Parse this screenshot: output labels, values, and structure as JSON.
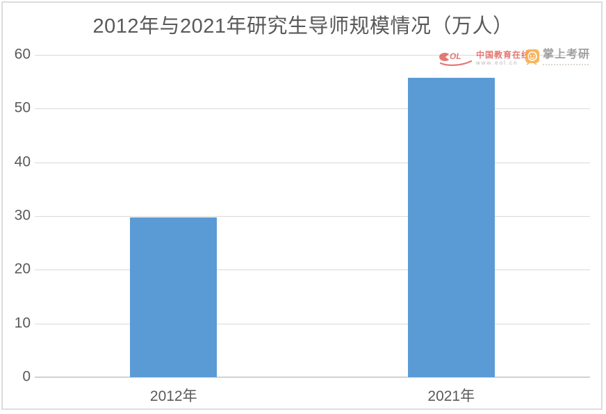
{
  "window": {
    "background": "#ffffff",
    "border_color": "#dcdcdc"
  },
  "chart_data": {
    "type": "bar",
    "title": "2012年与2021年研究生导师规模情况（万人）",
    "categories": [
      "2012年",
      "2021年"
    ],
    "values": [
      29.8,
      55.7
    ],
    "xlabel": "",
    "ylabel": "",
    "ylim": [
      0,
      60
    ],
    "yticks": [
      0,
      10,
      20,
      30,
      40,
      50,
      60
    ],
    "grid": "horizontal-only",
    "legend": "none",
    "bar_color": "#5B9BD5",
    "gridline_color": "#d9d9d9",
    "axis_line_color": "#d2d2d2",
    "text_color": "#595959"
  },
  "watermarks": {
    "eol": {
      "logo_text": "eol",
      "name": "中国教育在线",
      "url": "www.eol.cn",
      "color": "#e0625b"
    },
    "kaoyan": {
      "name": "掌上考研",
      "accent_color": "#f7a945",
      "text_color": "#8f8f8f"
    }
  }
}
